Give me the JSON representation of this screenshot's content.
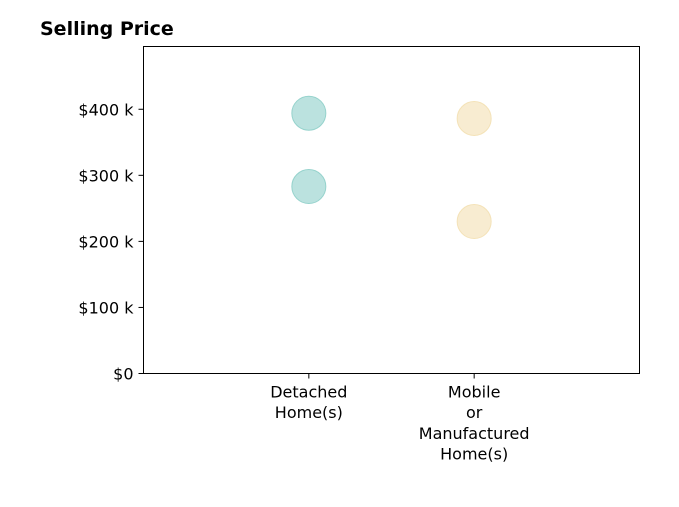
{
  "chart_data": {
    "type": "scatter",
    "title": "Selling Price",
    "xlabel": "",
    "ylabel": "",
    "categories": [
      [
        "Detached",
        "Home(s)"
      ],
      [
        "Mobile",
        "or",
        "Manufactured",
        "Home(s)"
      ]
    ],
    "series": [
      {
        "color": "#8ecfc9",
        "points": [
          {
            "category": 0,
            "value": 394000
          },
          {
            "category": 0,
            "value": 283000
          }
        ]
      },
      {
        "color": "#f3e0b3",
        "points": [
          {
            "category": 1,
            "value": 386000
          },
          {
            "category": 1,
            "value": 230000
          }
        ]
      }
    ],
    "yticks": [
      0,
      100000,
      200000,
      300000,
      400000
    ],
    "ytick_labels": [
      "$0",
      "$100 k",
      "$200 k",
      "$300 k",
      "$400 k"
    ],
    "ylim": [
      0,
      495000
    ],
    "xlim": [
      -1,
      2
    ],
    "grid": false,
    "legend": "none"
  }
}
